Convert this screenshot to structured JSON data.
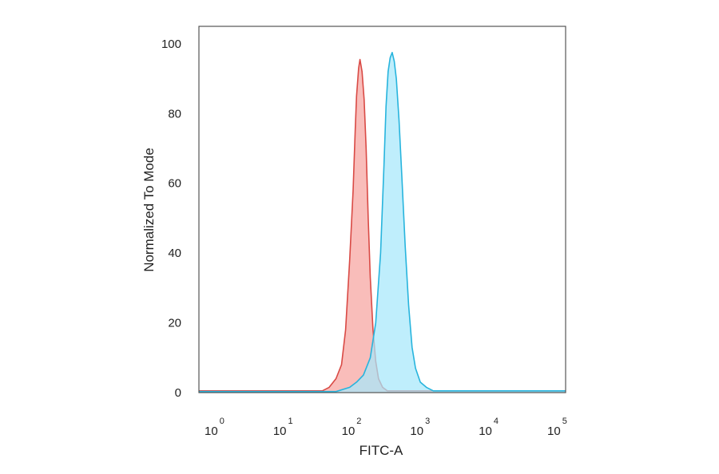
{
  "chart_data": {
    "type": "area",
    "title": "",
    "xlabel": "FITC-A",
    "ylabel": "Normalized To Mode",
    "x_scale": "log",
    "xlim_log10": [
      -0.3,
      5.05
    ],
    "ylim": [
      0,
      105
    ],
    "grid": false,
    "legend": "none",
    "y_ticks": [
      {
        "value": 0,
        "label": "0"
      },
      {
        "value": 20,
        "label": "20"
      },
      {
        "value": 40,
        "label": "40"
      },
      {
        "value": 60,
        "label": "60"
      },
      {
        "value": 80,
        "label": "80"
      },
      {
        "value": 100,
        "label": "100"
      }
    ],
    "x_ticks": [
      {
        "exp10": 0,
        "base": "10",
        "exp": "0"
      },
      {
        "exp10": 1,
        "base": "10",
        "exp": "1"
      },
      {
        "exp10": 2,
        "base": "10",
        "exp": "2"
      },
      {
        "exp10": 3,
        "base": "10",
        "exp": "3"
      },
      {
        "exp10": 4,
        "base": "10",
        "exp": "4"
      },
      {
        "exp10": 5,
        "base": "10",
        "exp": "5"
      }
    ],
    "series": [
      {
        "key": "control",
        "fill": "#f6a3a0",
        "stroke": "#d94a45",
        "log10_x": [
          -0.3,
          1.5,
          1.6,
          1.7,
          1.78,
          1.84,
          1.9,
          1.95,
          1.98,
          2.0,
          2.03,
          2.05,
          2.08,
          2.11,
          2.14,
          2.17,
          2.2,
          2.24,
          2.28,
          2.32,
          2.38,
          2.45,
          5.05
        ],
        "y": [
          0.5,
          0.5,
          1.5,
          4,
          8,
          18,
          38,
          58,
          75,
          85,
          93,
          95.5,
          92,
          84,
          70,
          50,
          33,
          18,
          9,
          4,
          1.5,
          0.5,
          0.5
        ]
      },
      {
        "key": "stained",
        "fill": "#a6e8fb",
        "stroke": "#27b4dd",
        "log10_x": [
          -0.3,
          1.7,
          1.9,
          2.0,
          2.1,
          2.2,
          2.28,
          2.35,
          2.4,
          2.43,
          2.46,
          2.49,
          2.52,
          2.55,
          2.58,
          2.62,
          2.66,
          2.71,
          2.76,
          2.81,
          2.86,
          2.93,
          3.02,
          3.12,
          5.05
        ],
        "y": [
          0.3,
          0.3,
          1.5,
          3,
          5,
          10,
          20,
          40,
          65,
          82,
          92,
          96,
          97.5,
          95,
          90,
          78,
          62,
          42,
          25,
          13,
          7,
          3,
          1.5,
          0.5,
          0.5
        ]
      }
    ]
  }
}
